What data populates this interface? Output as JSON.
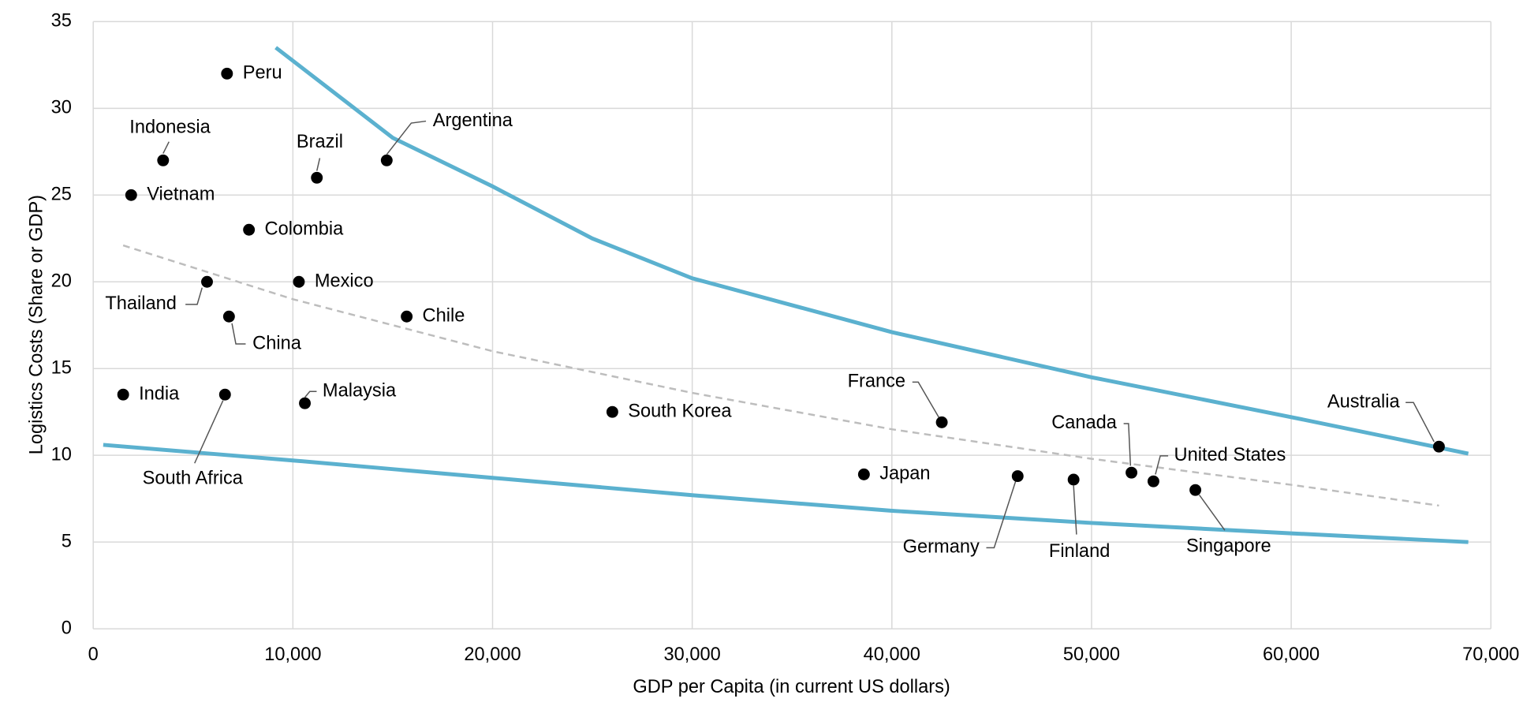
{
  "chart_data": {
    "type": "scatter",
    "x_label": "GDP per Capita (in current US dollars)",
    "y_label": "Logistics Costs (Share or GDP)",
    "xlim": [
      0,
      70000
    ],
    "xticks": [
      0,
      {
        "value": 10000,
        "label": "10,000"
      },
      {
        "value": 20000,
        "label": "20,000"
      },
      {
        "value": 30000,
        "label": "30,000"
      },
      {
        "value": 40000,
        "label": "40,000"
      },
      {
        "value": 50000,
        "label": "50,000"
      },
      {
        "value": 60000,
        "label": "60,000"
      },
      {
        "value": 70000,
        "label": "70,000"
      }
    ],
    "ylim": [
      0,
      35
    ],
    "yticks": [
      0,
      5,
      10,
      15,
      20,
      25,
      30,
      35
    ],
    "grid": true,
    "point_color": "#000000",
    "labels": [
      "Peru",
      "Indonesia",
      "Vietnam",
      "Brazil",
      "Argentina",
      "Colombia",
      "Thailand",
      "Mexico",
      "China",
      "Chile",
      "India",
      "South Africa",
      "Malaysia",
      "South Korea",
      "France",
      "Japan",
      "Germany",
      "Finland",
      "Canada",
      "United States",
      "Singapore",
      "Australia"
    ],
    "x": [
      6700,
      3500,
      1900,
      11200,
      14700,
      7800,
      5700,
      10300,
      6800,
      15700,
      1500,
      6600,
      10600,
      26000,
      42500,
      38600,
      46300,
      49100,
      52000,
      53100,
      55200,
      67400
    ],
    "y": [
      32,
      27,
      25,
      26,
      27,
      23,
      20,
      20,
      18,
      18,
      13.5,
      13.5,
      13,
      12.5,
      11.9,
      8.9,
      8.8,
      8.6,
      9.0,
      8.5,
      8.0,
      10.5
    ],
    "curves": [
      {
        "color": "#5bb1cf",
        "style": "solid",
        "x": [
          9140,
          15000,
          20000,
          25000,
          30000,
          40000,
          50000,
          60000,
          68870
        ],
        "y": [
          33.5,
          28.3,
          25.5,
          22.5,
          20.2,
          17.1,
          14.5,
          12.2,
          10.1
        ]
      },
      {
        "color": "#5bb1cf",
        "style": "solid",
        "x": [
          500,
          10000,
          20000,
          30000,
          40000,
          50000,
          60000,
          68870
        ],
        "y": [
          10.6,
          9.7,
          8.7,
          7.7,
          6.8,
          6.1,
          5.5,
          5.0
        ]
      },
      {
        "color": "#bdbdbd",
        "style": "dashed",
        "x": [
          1500,
          10000,
          20000,
          30000,
          40000,
          50000,
          60000,
          67400
        ],
        "y": [
          22.1,
          19.0,
          16.0,
          13.6,
          11.5,
          9.8,
          8.3,
          7.1
        ]
      }
    ]
  }
}
